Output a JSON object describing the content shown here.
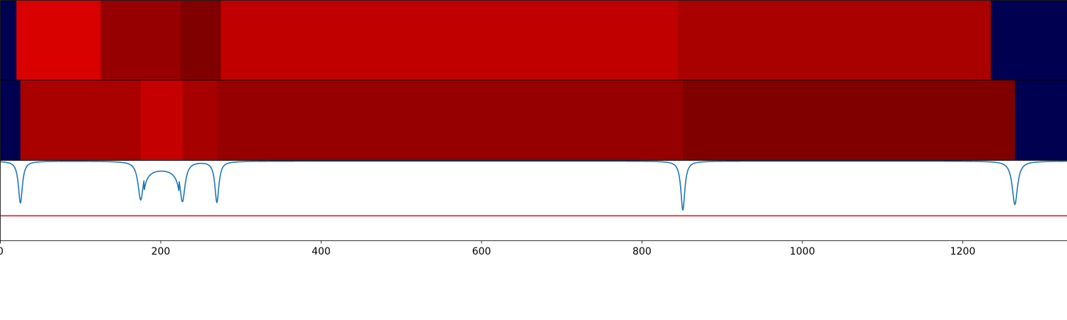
{
  "chart_data": {
    "type": "heatmap",
    "title": "",
    "xlabel": "",
    "ylabel": "",
    "xlim": [
      0,
      1330
    ],
    "grid": false,
    "x_ticks": [
      0,
      200,
      400,
      600,
      800,
      1000,
      1200
    ],
    "x_tick_labels": [
      "0",
      "200",
      "400",
      "600",
      "800",
      "1000",
      "1200"
    ],
    "tracks": [
      {
        "segments": [
          {
            "start": 0,
            "end": 20,
            "color": "#000050"
          },
          {
            "start": 20,
            "end": 125,
            "color": "#d90000"
          },
          {
            "start": 125,
            "end": 225,
            "color": "#960000"
          },
          {
            "start": 225,
            "end": 275,
            "color": "#800000"
          },
          {
            "start": 275,
            "end": 845,
            "color": "#c00000"
          },
          {
            "start": 845,
            "end": 1235,
            "color": "#a90000"
          },
          {
            "start": 1235,
            "end": 1330,
            "color": "#000050"
          }
        ]
      },
      {
        "segments": [
          {
            "start": 0,
            "end": 25,
            "color": "#000050"
          },
          {
            "start": 25,
            "end": 175,
            "color": "#a90000"
          },
          {
            "start": 175,
            "end": 227,
            "color": "#c50000"
          },
          {
            "start": 227,
            "end": 270,
            "color": "#a70000"
          },
          {
            "start": 270,
            "end": 851,
            "color": "#960000"
          },
          {
            "start": 851,
            "end": 1265,
            "color": "#800000"
          },
          {
            "start": 1265,
            "end": 1330,
            "color": "#000050"
          }
        ]
      }
    ],
    "signal": {
      "color": "#1f77b4",
      "ylim": [
        0,
        1
      ],
      "baseline": 0.99,
      "dips": [
        {
          "center": 25,
          "depth": 0.47,
          "width": 3
        },
        {
          "center": 175,
          "depth": 0.51,
          "width": 4
        },
        {
          "center": 227,
          "depth": 0.49,
          "width": 4
        },
        {
          "center": 270,
          "depth": 0.48,
          "width": 3
        },
        {
          "center": 851,
          "depth": 0.38,
          "width": 3
        },
        {
          "center": 1265,
          "depth": 0.45,
          "width": 4
        }
      ],
      "plateau": {
        "start": 179,
        "end": 223,
        "level": 0.89
      }
    },
    "threshold": {
      "value": 0.31,
      "color": "#e8161c"
    }
  }
}
